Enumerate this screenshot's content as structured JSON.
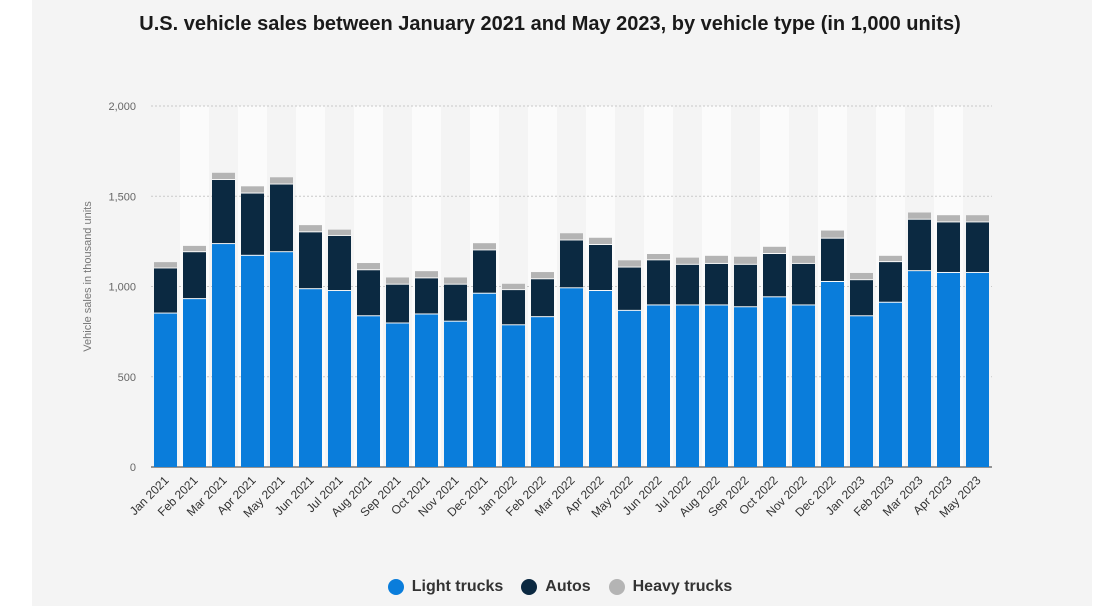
{
  "chart_data": {
    "type": "bar",
    "stacked": true,
    "title": "U.S. vehicle sales between January 2021 and May 2023, by vehicle type (in 1,000 units)",
    "ylabel": "Vehicle sales in thousand units",
    "xlabel": "",
    "ylim": [
      0,
      2000
    ],
    "yticks": [
      "0",
      "500",
      "1,000",
      "1,500",
      "2,000"
    ],
    "ytick_values": [
      0,
      500,
      1000,
      1500,
      2000
    ],
    "grid": true,
    "legend_position": "bottom",
    "categories": [
      "Jan 2021",
      "Feb 2021",
      "Mar 2021",
      "Apr 2021",
      "May 2021",
      "Jun 2021",
      "Jul 2021",
      "Aug 2021",
      "Sep 2021",
      "Oct 2021",
      "Nov 2021",
      "Dec 2021",
      "Jan 2022",
      "Feb 2022",
      "Mar 2022",
      "Apr 2022",
      "May 2022",
      "Jun 2022",
      "Jul 2022",
      "Aug 2022",
      "Sep 2022",
      "Oct 2022",
      "Nov 2022",
      "Dec 2022",
      "Jan 2023",
      "Feb 2023",
      "Mar 2023",
      "Apr 2023",
      "May 2023"
    ],
    "series": [
      {
        "name": "Light trucks",
        "color": "#0a7ddb",
        "values": [
          850,
          930,
          1235,
          1170,
          1190,
          985,
          975,
          835,
          795,
          845,
          805,
          960,
          785,
          830,
          990,
          975,
          865,
          895,
          895,
          895,
          885,
          940,
          895,
          1025,
          835,
          910,
          1085,
          1075,
          1075
        ]
      },
      {
        "name": "Autos",
        "color": "#0b2941",
        "values": [
          250,
          260,
          355,
          345,
          375,
          315,
          305,
          255,
          215,
          200,
          205,
          240,
          195,
          210,
          265,
          255,
          240,
          250,
          225,
          230,
          235,
          240,
          230,
          240,
          200,
          225,
          285,
          280,
          280
        ]
      },
      {
        "name": "Heavy trucks",
        "color": "#b4b4b4",
        "values": [
          35,
          35,
          40,
          40,
          40,
          40,
          35,
          40,
          40,
          40,
          40,
          40,
          35,
          40,
          40,
          40,
          40,
          35,
          40,
          45,
          45,
          40,
          45,
          45,
          40,
          35,
          40,
          40,
          40
        ]
      }
    ]
  }
}
